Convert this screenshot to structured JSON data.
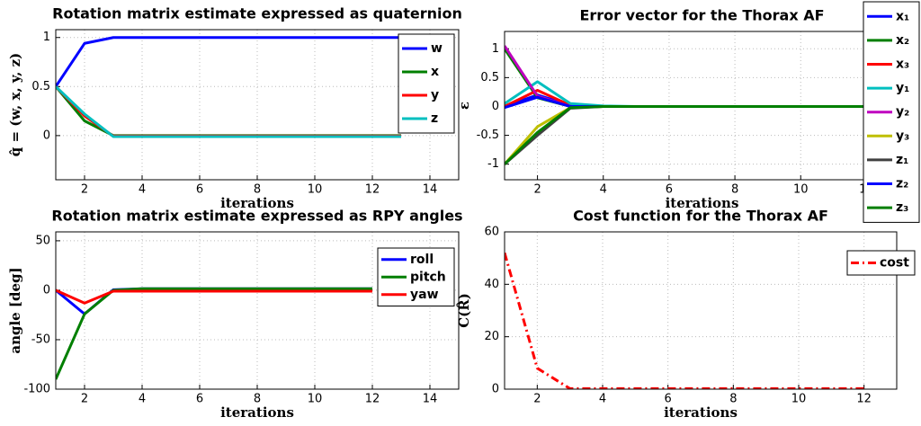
{
  "chart_data": [
    {
      "type": "line",
      "title": "Rotation matrix estimate expressed as quaternion",
      "ylabel": "q̂ = (w, x, y, z)",
      "xlabel": "iterations",
      "x": [
        1,
        2,
        3,
        4,
        5,
        6,
        7,
        8,
        9,
        10,
        11,
        12,
        13
      ],
      "series": [
        {
          "name": "w",
          "color": "#0000ff",
          "values": [
            0.5,
            0.94,
            1,
            1,
            1,
            1,
            1,
            1,
            1,
            1,
            1,
            1,
            1
          ]
        },
        {
          "name": "x",
          "color": "#007f00",
          "values": [
            0.5,
            0.15,
            0,
            0,
            0,
            0,
            0,
            0,
            0,
            0,
            0,
            0,
            0
          ]
        },
        {
          "name": "y",
          "color": "#ff0000",
          "values": [
            0.5,
            0.2,
            -0.005,
            -0.005,
            -0.005,
            -0.005,
            -0.005,
            -0.005,
            -0.005,
            -0.005,
            -0.005,
            -0.005,
            -0.005
          ]
        },
        {
          "name": "z",
          "color": "#00bfbf",
          "values": [
            0.5,
            0.22,
            -0.01,
            -0.01,
            -0.01,
            -0.01,
            -0.01,
            -0.01,
            -0.01,
            -0.01,
            -0.01,
            -0.01,
            -0.01
          ]
        }
      ],
      "xlim": [
        1,
        15
      ],
      "xticks": [
        2,
        4,
        6,
        8,
        10,
        12,
        14
      ],
      "ylim": [
        -0.45,
        1.08
      ],
      "yticks": [
        0,
        0.5,
        1
      ],
      "grid": true,
      "legend": "upper right"
    },
    {
      "type": "line",
      "title": "Error vector for the Thorax AF",
      "ylabel": "ε",
      "xlabel": "iterations",
      "x": [
        1,
        2,
        3,
        4,
        5,
        6,
        7,
        8,
        9,
        10,
        11,
        12
      ],
      "series": [
        {
          "name": "x₁",
          "color": "#0000ff",
          "values": [
            0,
            0.2,
            0.02,
            0,
            0,
            0,
            0,
            0,
            0,
            0,
            0,
            0
          ]
        },
        {
          "name": "x₂",
          "color": "#007f00",
          "values": [
            1,
            0.15,
            0,
            0,
            0,
            0,
            0,
            0,
            0,
            0,
            0,
            0
          ]
        },
        {
          "name": "x₃",
          "color": "#ff0000",
          "values": [
            0,
            0.28,
            0.02,
            0,
            0,
            0,
            0,
            0,
            0,
            0,
            0,
            0
          ]
        },
        {
          "name": "y₁",
          "color": "#00bfbf",
          "values": [
            0.05,
            0.43,
            0.05,
            0.01,
            0,
            0,
            0,
            0,
            0,
            0,
            0,
            0
          ]
        },
        {
          "name": "y₂",
          "color": "#bf00bf",
          "values": [
            1.05,
            0.18,
            0,
            0,
            0,
            0,
            0,
            0,
            0,
            0,
            0,
            0
          ]
        },
        {
          "name": "y₃",
          "color": "#bfbf00",
          "values": [
            -1,
            -0.35,
            -0.02,
            0,
            0,
            0,
            0,
            0,
            0,
            0,
            0,
            0
          ]
        },
        {
          "name": "z₁",
          "color": "#404040",
          "values": [
            -1,
            -0.5,
            -0.03,
            0,
            0,
            0,
            0,
            0,
            0,
            0,
            0,
            0
          ]
        },
        {
          "name": "z₂",
          "color": "#0000ff",
          "values": [
            -0.02,
            0.16,
            0,
            0,
            0,
            0,
            0,
            0,
            0,
            0,
            0,
            0
          ]
        },
        {
          "name": "z₃",
          "color": "#007f00",
          "values": [
            -1,
            -0.45,
            -0.02,
            0,
            0,
            0,
            0,
            0,
            0,
            0,
            0,
            0
          ]
        }
      ],
      "xlim": [
        1,
        13
      ],
      "xticks": [
        2,
        4,
        6,
        8,
        10,
        12
      ],
      "ylim": [
        -1.27,
        1.3
      ],
      "yticks": [
        -1,
        -0.5,
        0,
        0.5,
        1
      ],
      "grid": true,
      "legend": "upper right"
    },
    {
      "type": "line",
      "title": "Rotation matrix estimate expressed as RPY angles",
      "ylabel": "angle [deg]",
      "xlabel": "iterations",
      "x": [
        1,
        2,
        3,
        4,
        5,
        6,
        7,
        8,
        9,
        10,
        11,
        12
      ],
      "series": [
        {
          "name": "roll",
          "color": "#0000ff",
          "values": [
            0,
            -24,
            0.5,
            1.5,
            1.5,
            1.5,
            1.5,
            1.5,
            1.5,
            1.5,
            1.5,
            1.5
          ]
        },
        {
          "name": "pitch",
          "color": "#007f00",
          "values": [
            -90,
            -24,
            0,
            1.5,
            1.5,
            1.5,
            1.5,
            1.5,
            1.5,
            1.5,
            1.5,
            1.5
          ]
        },
        {
          "name": "yaw",
          "color": "#ff0000",
          "values": [
            0,
            -13,
            -1,
            -1,
            -1,
            -1,
            -1,
            -1,
            -1,
            -1,
            -1,
            -1
          ]
        }
      ],
      "xlim": [
        1,
        15
      ],
      "xticks": [
        2,
        4,
        6,
        8,
        10,
        12,
        14
      ],
      "ylim": [
        -100,
        59
      ],
      "yticks": [
        -100,
        -50,
        0,
        50
      ],
      "grid": true,
      "legend": "upper right"
    },
    {
      "type": "line",
      "title": "Cost function for the Thorax AF",
      "ylabel": "C(R̂)",
      "xlabel": "iterations",
      "x": [
        1,
        2,
        3,
        4,
        5,
        6,
        7,
        8,
        9,
        10,
        11,
        12
      ],
      "series": [
        {
          "name": "cost",
          "color": "#ff0000",
          "linestyle": "dashdot",
          "values": [
            52,
            8,
            0.2,
            0.2,
            0.2,
            0.2,
            0.2,
            0.2,
            0.2,
            0.2,
            0.2,
            0.2
          ]
        }
      ],
      "xlim": [
        1,
        13
      ],
      "xticks": [
        2,
        4,
        6,
        8,
        10,
        12
      ],
      "ylim": [
        0,
        60
      ],
      "yticks": [
        0,
        20,
        40,
        60
      ],
      "grid": true,
      "legend": "upper right"
    }
  ]
}
